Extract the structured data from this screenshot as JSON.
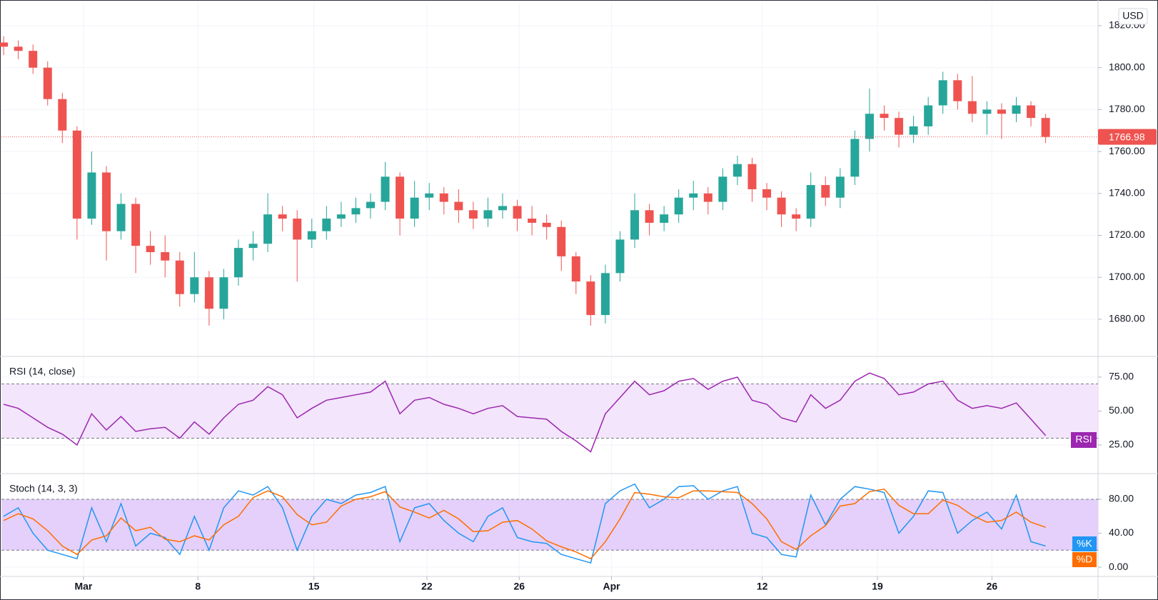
{
  "chart_data": [
    {
      "type": "candlestick",
      "currency": "USD",
      "last_price": 1766.98,
      "open": [
        1812,
        1810,
        1808,
        1800,
        1785,
        1770,
        1728,
        1750,
        1722,
        1735,
        1715,
        1712,
        1708,
        1692,
        1700,
        1685,
        1700,
        1714,
        1716,
        1730,
        1728,
        1718,
        1722,
        1728,
        1730,
        1733,
        1736,
        1748,
        1728,
        1738,
        1740,
        1736,
        1732,
        1728,
        1732,
        1734,
        1728,
        1726,
        1724,
        1710,
        1698,
        1682,
        1702,
        1718,
        1732,
        1726,
        1730,
        1738,
        1740,
        1736,
        1748,
        1754,
        1742,
        1738,
        1730,
        1728,
        1744,
        1738,
        1748,
        1766,
        1778,
        1776,
        1768,
        1772,
        1782,
        1794,
        1784,
        1778,
        1780,
        1778,
        1782,
        1776
      ],
      "high": [
        1815,
        1813,
        1811,
        1803,
        1788,
        1772,
        1760,
        1753,
        1740,
        1738,
        1722,
        1720,
        1712,
        1712,
        1703,
        1704,
        1718,
        1722,
        1740,
        1734,
        1732,
        1728,
        1734,
        1736,
        1738,
        1740,
        1755,
        1750,
        1746,
        1745,
        1743,
        1742,
        1736,
        1738,
        1740,
        1737,
        1734,
        1730,
        1727,
        1712,
        1701,
        1706,
        1722,
        1740,
        1735,
        1734,
        1742,
        1746,
        1743,
        1752,
        1758,
        1757,
        1745,
        1741,
        1733,
        1750,
        1748,
        1752,
        1770,
        1790,
        1782,
        1779,
        1777,
        1786,
        1798,
        1797,
        1796,
        1784,
        1783,
        1786,
        1784,
        1778
      ],
      "low": [
        1806,
        1804,
        1797,
        1782,
        1764,
        1718,
        1725,
        1708,
        1718,
        1702,
        1706,
        1700,
        1686,
        1688,
        1677,
        1680,
        1696,
        1708,
        1712,
        1722,
        1698,
        1714,
        1718,
        1724,
        1726,
        1728,
        1732,
        1720,
        1724,
        1732,
        1730,
        1726,
        1723,
        1724,
        1728,
        1722,
        1720,
        1718,
        1703,
        1692,
        1677,
        1678,
        1698,
        1714,
        1720,
        1722,
        1726,
        1732,
        1730,
        1732,
        1744,
        1736,
        1732,
        1724,
        1722,
        1724,
        1734,
        1733,
        1744,
        1760,
        1770,
        1762,
        1764,
        1768,
        1778,
        1780,
        1774,
        1768,
        1766,
        1774,
        1772,
        1764
      ],
      "close": [
        1810,
        1808,
        1800,
        1785,
        1770,
        1728,
        1750,
        1722,
        1735,
        1715,
        1712,
        1708,
        1692,
        1700,
        1685,
        1700,
        1714,
        1716,
        1730,
        1728,
        1718,
        1722,
        1728,
        1730,
        1733,
        1736,
        1748,
        1728,
        1738,
        1740,
        1736,
        1732,
        1728,
        1732,
        1734,
        1728,
        1726,
        1724,
        1710,
        1698,
        1682,
        1702,
        1718,
        1732,
        1726,
        1730,
        1738,
        1740,
        1736,
        1748,
        1754,
        1742,
        1738,
        1730,
        1728,
        1744,
        1738,
        1748,
        1766,
        1778,
        1776,
        1768,
        1772,
        1782,
        1794,
        1784,
        1778,
        1780,
        1778,
        1782,
        1776,
        1766.98
      ],
      "up_color": "#26a69a",
      "down_color": "#ef5350",
      "xlim": [
        -0.15,
        74.57
      ],
      "ylim": [
        1662.6,
        1830.9
      ],
      "yticks": [
        {
          "value": 1680,
          "label": "1680.00"
        },
        {
          "value": 1700,
          "label": "1700.00"
        },
        {
          "value": 1720,
          "label": "1720.00"
        },
        {
          "value": 1740,
          "label": "1740.00"
        },
        {
          "value": 1760,
          "label": "1760.00"
        },
        {
          "value": 1780,
          "label": "1780.00"
        },
        {
          "value": 1800,
          "label": "1800.00"
        },
        {
          "value": 1820,
          "label": "1820.00"
        }
      ],
      "grid": true
    },
    {
      "type": "line",
      "title": "RSI (14, close)",
      "legend": "RSI",
      "color": "#9c27b0",
      "band_color": "#f3e5fb",
      "bands": [
        30,
        70
      ],
      "values": [
        55,
        52,
        45,
        38,
        33,
        25,
        48,
        36,
        46,
        35,
        37,
        38,
        30,
        42,
        33,
        45,
        55,
        58,
        68,
        62,
        45,
        52,
        58,
        60,
        62,
        64,
        72,
        48,
        58,
        60,
        55,
        52,
        48,
        52,
        54,
        46,
        45,
        44,
        35,
        28,
        20,
        48,
        60,
        72,
        62,
        65,
        72,
        74,
        66,
        72,
        75,
        58,
        55,
        45,
        42,
        62,
        52,
        58,
        72,
        78,
        74,
        62,
        64,
        70,
        72,
        58,
        52,
        54,
        52,
        56,
        44,
        32
      ],
      "xlim": [
        -0.15,
        74.57
      ],
      "ylim": [
        4.5,
        89.7
      ],
      "yticks": [
        {
          "value": 25,
          "label": "25.00"
        },
        {
          "value": 50,
          "label": "50.00"
        },
        {
          "value": 75,
          "label": "75.00"
        }
      ],
      "grid": true
    },
    {
      "type": "line",
      "title": "Stoch (14, 3, 3)",
      "band_color": "#e4d0fa",
      "bands": [
        20,
        80
      ],
      "series": [
        {
          "name": "%K",
          "color": "#2196f3",
          "values": [
            60,
            70,
            40,
            20,
            15,
            10,
            70,
            30,
            75,
            25,
            40,
            35,
            15,
            60,
            20,
            70,
            90,
            85,
            95,
            70,
            20,
            60,
            80,
            75,
            85,
            88,
            95,
            30,
            70,
            75,
            55,
            40,
            30,
            60,
            70,
            35,
            30,
            28,
            15,
            10,
            5,
            75,
            90,
            98,
            70,
            80,
            95,
            96,
            80,
            90,
            95,
            40,
            35,
            15,
            12,
            85,
            50,
            80,
            95,
            92,
            88,
            40,
            60,
            90,
            88,
            40,
            55,
            65,
            45,
            85,
            30,
            25
          ]
        },
        {
          "name": "%D",
          "color": "#ff6d00",
          "values": [
            55,
            63,
            57,
            43,
            25,
            15,
            32,
            37,
            58,
            43,
            47,
            33,
            30,
            37,
            32,
            50,
            60,
            82,
            90,
            83,
            62,
            50,
            53,
            72,
            80,
            83,
            89,
            71,
            65,
            58,
            67,
            57,
            42,
            43,
            53,
            55,
            45,
            31,
            24,
            18,
            10,
            30,
            57,
            88,
            86,
            83,
            82,
            90,
            90,
            89,
            88,
            75,
            57,
            30,
            21,
            37,
            49,
            72,
            75,
            89,
            92,
            73,
            63,
            63,
            79,
            73,
            61,
            53,
            55,
            65,
            53,
            47
          ]
        }
      ],
      "xlim": [
        -0.15,
        74.57
      ],
      "ylim": [
        -10.9,
        109.5
      ],
      "yticks": [
        {
          "value": 0,
          "label": "0.00"
        },
        {
          "value": 40,
          "label": "40.00"
        },
        {
          "value": 80,
          "label": "80.00"
        }
      ],
      "grid": true,
      "xticks": [
        {
          "value": 5.44,
          "label": "Mar"
        },
        {
          "value": 13.24,
          "label": "8"
        },
        {
          "value": 21.14,
          "label": "15"
        },
        {
          "value": 28.84,
          "label": "22"
        },
        {
          "value": 35.13,
          "label": "26"
        },
        {
          "value": 41.42,
          "label": "Apr"
        },
        {
          "value": 51.69,
          "label": "12"
        },
        {
          "value": 59.54,
          "label": "19"
        },
        {
          "value": 67.34,
          "label": "26"
        }
      ]
    }
  ]
}
